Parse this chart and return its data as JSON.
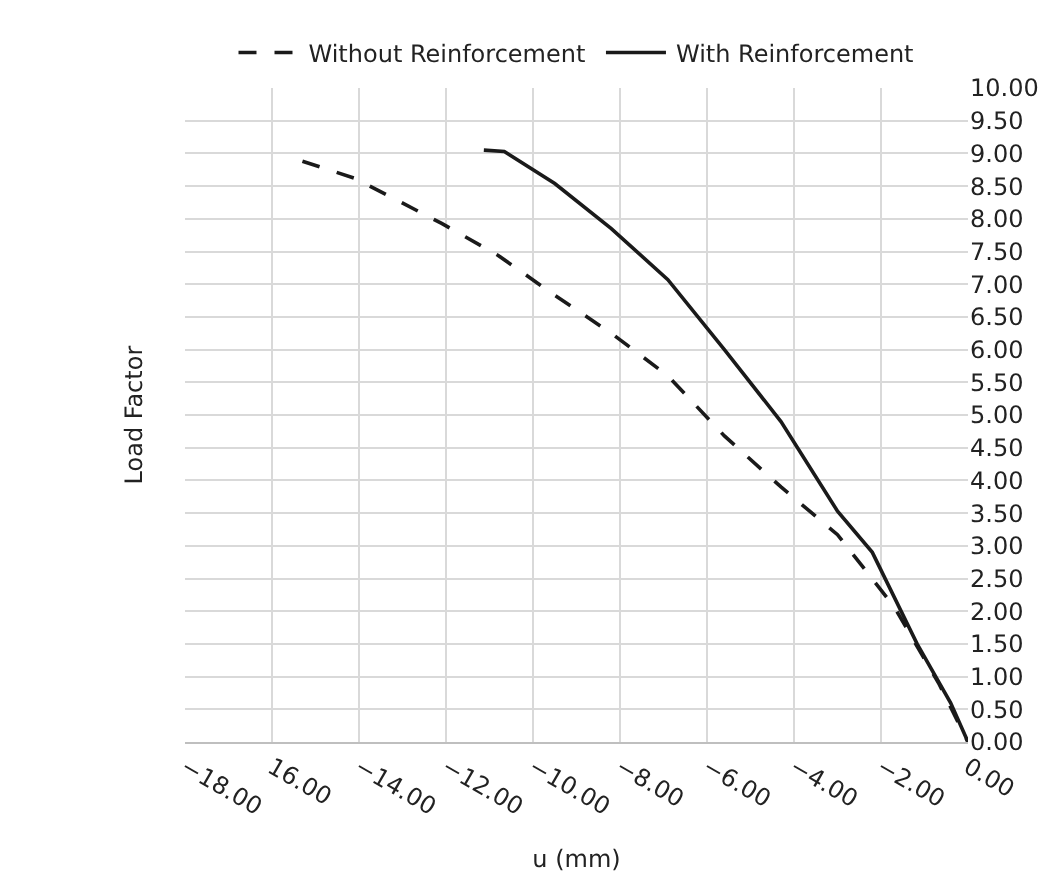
{
  "chart_data": {
    "type": "line",
    "xlabel": "u (mm)",
    "ylabel": "Load Factor",
    "xlim": [
      -18,
      0
    ],
    "xticks": [
      {
        "value": -18,
        "label": "−18.00"
      },
      {
        "value": -16,
        "label": "16.00"
      },
      {
        "value": -14,
        "label": "−14.00"
      },
      {
        "value": -12,
        "label": "−12.00"
      },
      {
        "value": -10,
        "label": "−10.00"
      },
      {
        "value": -8,
        "label": "−8.00"
      },
      {
        "value": -6,
        "label": "−6.00"
      },
      {
        "value": -4,
        "label": "−4.00"
      },
      {
        "value": -2,
        "label": "−2.00"
      },
      {
        "value": 0,
        "label": "0.00"
      }
    ],
    "ylim": [
      0,
      10
    ],
    "yticks": [
      {
        "value": 0,
        "label": "0.00"
      },
      {
        "value": 0.5,
        "label": "0.50"
      },
      {
        "value": 1,
        "label": "1.00"
      },
      {
        "value": 1.5,
        "label": "1.50"
      },
      {
        "value": 2,
        "label": "2.00"
      },
      {
        "value": 2.5,
        "label": "2.50"
      },
      {
        "value": 3,
        "label": "3.00"
      },
      {
        "value": 3.5,
        "label": "3.50"
      },
      {
        "value": 4,
        "label": "4.00"
      },
      {
        "value": 4.5,
        "label": "4.50"
      },
      {
        "value": 5,
        "label": "5.00"
      },
      {
        "value": 5.5,
        "label": "5.50"
      },
      {
        "value": 6,
        "label": "6.00"
      },
      {
        "value": 6.5,
        "label": "6.50"
      },
      {
        "value": 7,
        "label": "7.00"
      },
      {
        "value": 7.5,
        "label": "7.50"
      },
      {
        "value": 8,
        "label": "8.00"
      },
      {
        "value": 8.5,
        "label": "8.50"
      },
      {
        "value": 9,
        "label": "9.00"
      },
      {
        "value": 9.5,
        "label": "9.50"
      },
      {
        "value": 10,
        "label": "10.00"
      }
    ],
    "grid": true,
    "legend": "top",
    "marker": "none",
    "series": [
      {
        "name": "Without Reinforcement",
        "color": "#1a1a1a",
        "line_style": "dashed",
        "x": [
          -15.3,
          -14.1,
          -12.1,
          -10.8,
          -9.5,
          -8.2,
          -6.9,
          -5.6,
          -4.3,
          -3.0,
          -1.7,
          -0.66,
          0
        ],
        "values": [
          8.88,
          8.62,
          7.93,
          7.44,
          6.83,
          6.25,
          5.6,
          4.68,
          3.9,
          3.17,
          2.07,
          0.88,
          0
        ]
      },
      {
        "name": "With Reinforcement",
        "color": "#1a1a1a",
        "line_style": "solid",
        "x": [
          -11.13,
          -10.66,
          -9.5,
          -8.2,
          -6.9,
          -5.6,
          -4.3,
          -3.0,
          -2.2,
          -1.17,
          -0.4,
          0
        ],
        "values": [
          9.05,
          9.03,
          8.54,
          7.85,
          7.07,
          6.0,
          4.9,
          3.53,
          2.9,
          1.5,
          0.6,
          0
        ]
      }
    ]
  }
}
